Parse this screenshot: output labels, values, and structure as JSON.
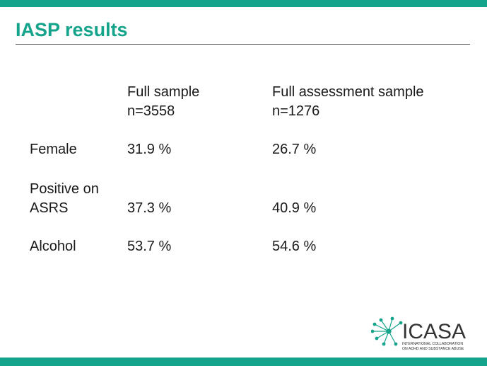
{
  "header": {
    "title": "IASP results"
  },
  "table": {
    "columns": [
      {
        "title": "Full sample",
        "n": "n=3558"
      },
      {
        "title": "Full assessment sample",
        "n": "n=1276"
      }
    ],
    "rows": [
      {
        "label": [
          "Female"
        ],
        "values": [
          "31.9 %",
          "26.7 %"
        ]
      },
      {
        "label": [
          "Positive on",
          "ASRS"
        ],
        "values": [
          "37.3 %",
          "40.9 %"
        ]
      },
      {
        "label": [
          "Alcohol"
        ],
        "values": [
          "53.7 %",
          "54.6 %"
        ]
      }
    ]
  },
  "logo": {
    "name": "ICASA",
    "line1": "INTERNATIONAL COLLABORATION",
    "line2": "ON ADHD AND SUBSTANCE ABUSE"
  }
}
